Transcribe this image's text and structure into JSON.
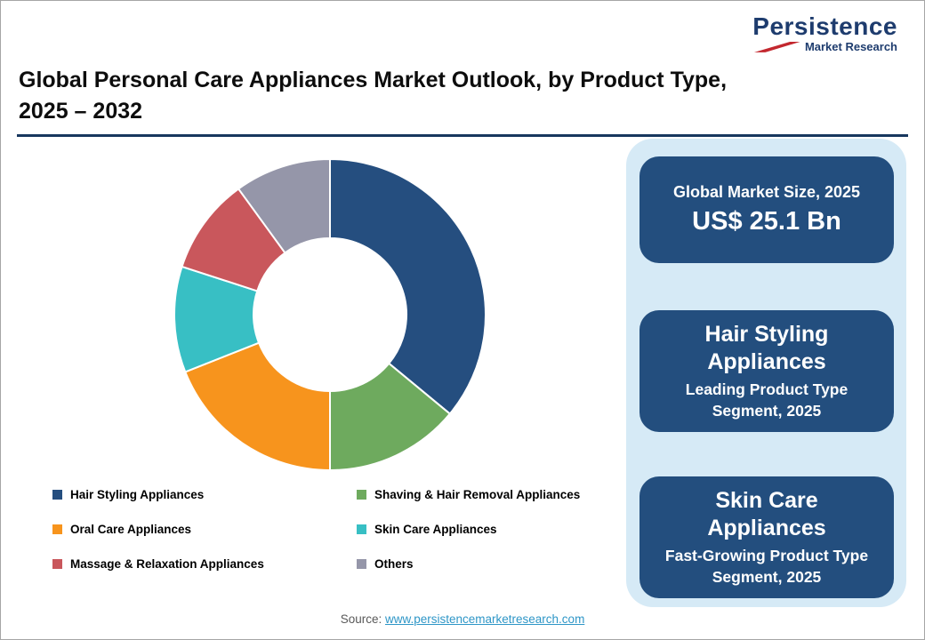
{
  "logo": {
    "name": "Persistence",
    "subtitle": "Market Research"
  },
  "header": {
    "title_line1": "Global Personal Care Appliances Market Outlook, by Product Type,",
    "title_line2": "2025 – 2032"
  },
  "chart_data": {
    "type": "pie",
    "donut": true,
    "inner_radius_ratio": 0.49,
    "title": "Global Personal Care Appliances Market Outlook, by Product Type, 2025 – 2032",
    "legend_position": "bottom",
    "segments": [
      {
        "label": "Hair Styling Appliances",
        "value": 36,
        "color": "#254E7F"
      },
      {
        "label": "Shaving & Hair Removal Appliances",
        "value": 14,
        "color": "#6EAA5E"
      },
      {
        "label": "Oral Care Appliances",
        "value": 19,
        "color": "#F7941D"
      },
      {
        "label": "Skin Care Appliances",
        "value": 11,
        "color": "#38BFC4"
      },
      {
        "label": "Massage & Relaxation Appliances",
        "value": 10,
        "color": "#C9575C"
      },
      {
        "label": "Others",
        "value": 10,
        "color": "#9596A9"
      }
    ]
  },
  "info_panel": {
    "boxes": [
      {
        "line1": "Global Market Size, 2025",
        "line2": "US$ 25.1 Bn"
      },
      {
        "line1": "Hair Styling Appliances",
        "line2": "Leading Product Type Segment, 2025"
      },
      {
        "line1": "Skin Care Appliances",
        "line2": "Fast-Growing Product Type Segment, 2025"
      }
    ]
  },
  "footer": {
    "source_label": "Source:",
    "source_link": "www.persistencemarketresearch.com"
  },
  "colors": {
    "brand_navy": "#1E3C6E",
    "box_bg": "#234E7E",
    "panel_bg": "#D6EAF6",
    "rule": "#17375E",
    "link": "#2E96C7",
    "logo_red": "#C3272E"
  }
}
